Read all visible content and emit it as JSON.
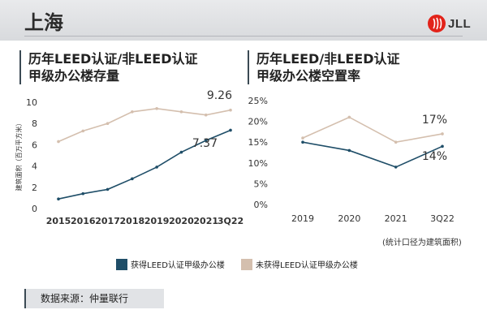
{
  "header": {
    "title": "上海",
    "logo_text": "JLL"
  },
  "colors": {
    "leed": "#1f4e68",
    "non_leed": "#d4bfae",
    "axis_text": "#333333"
  },
  "chart_data": [
    {
      "type": "line",
      "title_lines": [
        "历年LEED认证/非LEED认证",
        "甲级办公楼存量"
      ],
      "ylabel": "建筑面积（百万平方米）",
      "categories": [
        "2015",
        "2016",
        "2017",
        "2018",
        "2019",
        "2020",
        "2021",
        "3Q22"
      ],
      "ylim": [
        0,
        10
      ],
      "yticks": [
        "0",
        "2",
        "4",
        "6",
        "8",
        "10"
      ],
      "series": [
        {
          "name": "获得LEED认证甲级办公楼",
          "values": [
            0.9,
            1.4,
            1.8,
            2.8,
            3.9,
            5.3,
            6.4,
            7.37
          ]
        },
        {
          "name": "未获得LEED认证甲级办公楼",
          "values": [
            6.3,
            7.3,
            8.0,
            9.1,
            9.4,
            9.1,
            8.8,
            9.26
          ]
        }
      ],
      "annotations": {
        "leed": "7.37",
        "non_leed": "9.26"
      }
    },
    {
      "type": "line",
      "title_lines": [
        "历年LEED/非LEED认证",
        "甲级办公楼空置率"
      ],
      "categories": [
        "2019",
        "2020",
        "2021",
        "3Q22"
      ],
      "ylim": [
        0,
        25
      ],
      "yticks": [
        "0%",
        "5%",
        "10%",
        "15%",
        "20%",
        "25%"
      ],
      "series": [
        {
          "name": "获得LEED认证甲级办公楼",
          "values": [
            15,
            13,
            9,
            14
          ]
        },
        {
          "name": "未获得LEED认证甲级办公楼",
          "values": [
            16,
            21,
            15,
            17
          ]
        }
      ],
      "annotations": {
        "leed": "14%",
        "non_leed": "17%"
      }
    }
  ],
  "footnote": "(统计口径为建筑面积)",
  "legend": [
    "获得LEED认证甲级办公楼",
    "未获得LEED认证甲级办公楼"
  ],
  "source": "数据来源：仲量联行"
}
